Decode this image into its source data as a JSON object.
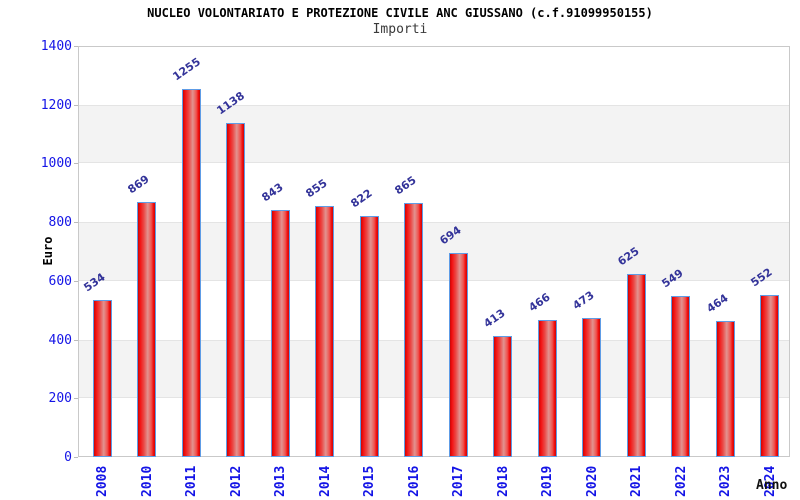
{
  "chart_data": {
    "type": "bar",
    "title": "NUCLEO VOLONTARIATO E PROTEZIONE CIVILE ANC GIUSSANO (c.f.91099950155)",
    "subtitle": "Importi",
    "xlabel": "Anno",
    "ylabel": "Euro",
    "categories": [
      "2008",
      "2010",
      "2011",
      "2012",
      "2013",
      "2014",
      "2015",
      "2016",
      "2017",
      "2018",
      "2019",
      "2020",
      "2021",
      "2022",
      "2023",
      "2024"
    ],
    "values": [
      534,
      869,
      1255,
      1138,
      843,
      855,
      822,
      865,
      694,
      413,
      466,
      473,
      625,
      549,
      464,
      552
    ],
    "ylim": [
      0,
      1400
    ],
    "ytick_step": 200,
    "yticks": [
      0,
      200,
      400,
      600,
      800,
      1000,
      1200,
      1400
    ],
    "grid": "alternating-horizontal-bands",
    "legend_position": "none",
    "colors": {
      "bar_fill": "#f31111",
      "bar_fill_light": "#e29390",
      "bar_border": "#5e9ce6",
      "tick_label": "#1414e6",
      "value_label": "#333399",
      "band": "#f3f3f3",
      "plot_border": "#c9c9c9",
      "title": "#000000",
      "subtitle": "#3a3a3a",
      "background": "#ffffff"
    }
  }
}
